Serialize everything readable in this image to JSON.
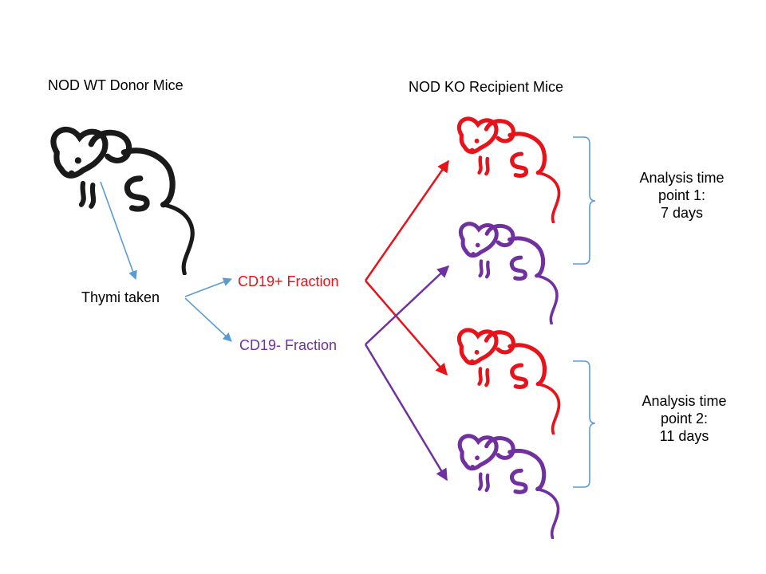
{
  "donor": {
    "title": "NOD WT Donor Mice"
  },
  "recipient": {
    "title": "NOD KO Recipient Mice"
  },
  "step": {
    "label": "Thymi taken"
  },
  "fractions": {
    "positive": {
      "label": "CD19+ Fraction",
      "color": "#e8131a"
    },
    "negative": {
      "label": "CD19- Fraction",
      "color": "#7030a0"
    }
  },
  "analysis": [
    {
      "lines": [
        "Analysis time",
        "point 1:",
        "7 days"
      ]
    },
    {
      "lines": [
        "Analysis time",
        "point 2:",
        "11 days"
      ]
    }
  ],
  "colors": {
    "mouse_black": "#1a1a1a",
    "arrow_blue": "#5b9bd5",
    "bracket_blue": "#5b9bd5",
    "red": "#e8131a",
    "purple": "#7030a0"
  }
}
